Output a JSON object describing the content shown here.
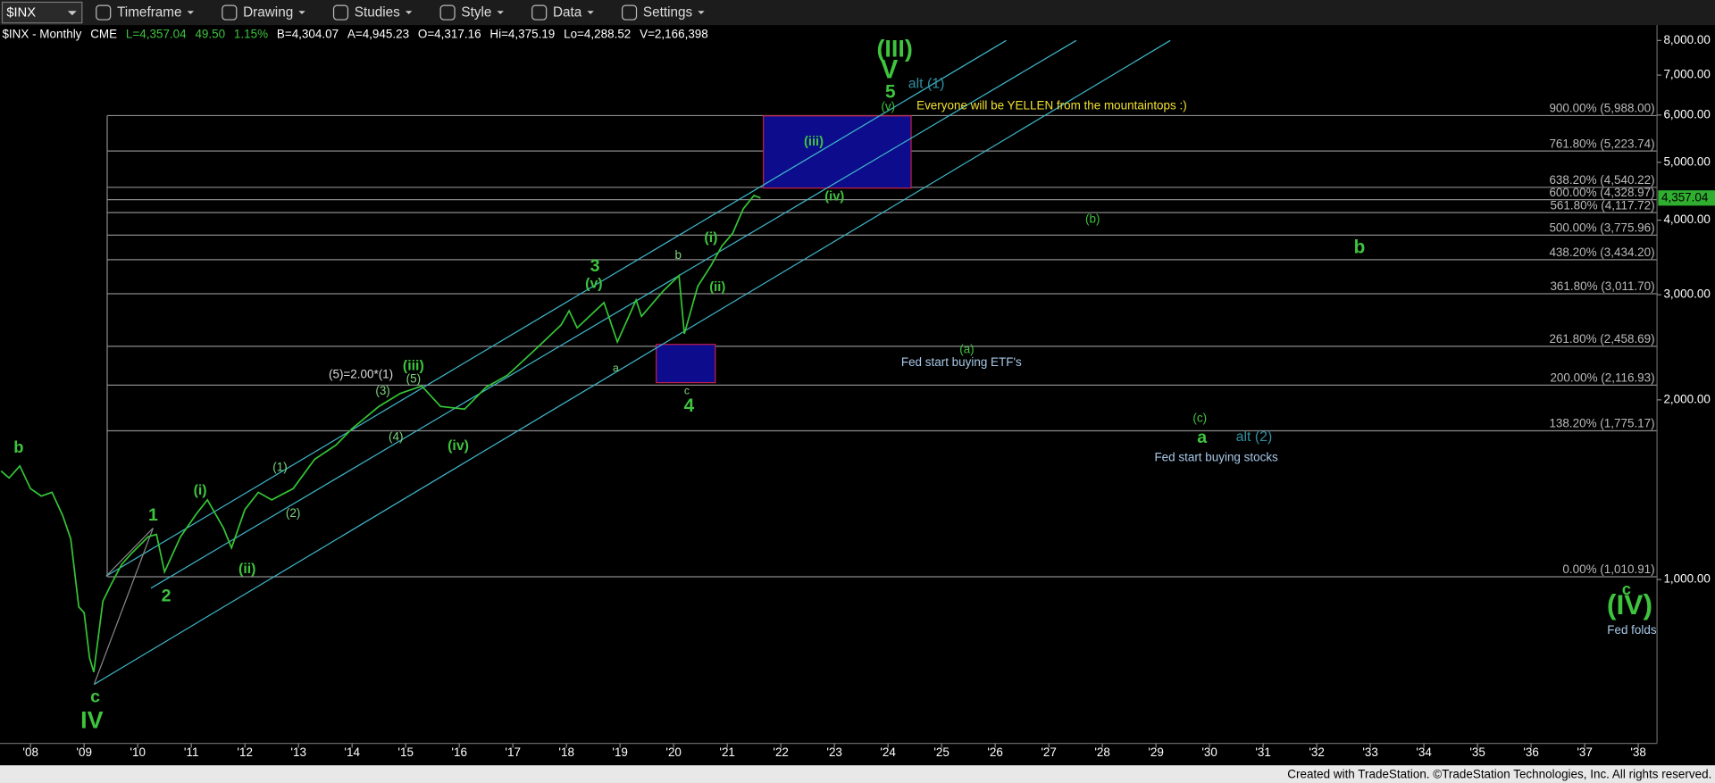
{
  "toolbar": {
    "symbol": "$INX",
    "menus": [
      "Timeframe",
      "Drawing",
      "Studies",
      "Style",
      "Data",
      "Settings"
    ]
  },
  "info": {
    "items": [
      "$INX - Monthly",
      "CME",
      "L=4,357.04",
      "49.50",
      "1.15%",
      "B=4,304.07",
      "A=4,945.23",
      "O=4,317.16",
      "Hi=4,375.19",
      "Lo=4,288.52",
      "V=2,166,398"
    ],
    "last_price_label": "4,357.04"
  },
  "chart_data": {
    "type": "line",
    "color": "#35c535",
    "log_scale": true,
    "x": [
      2007.45,
      2007.6,
      2007.8,
      2008.0,
      2008.2,
      2008.4,
      2008.6,
      2008.75,
      2008.9,
      2009.0,
      2009.1,
      2009.18,
      2009.35,
      2009.5,
      2009.7,
      2009.9,
      2010.2,
      2010.35,
      2010.5,
      2010.8,
      2011.1,
      2011.3,
      2011.6,
      2011.75,
      2012.0,
      2012.25,
      2012.5,
      2012.9,
      2013.3,
      2013.7,
      2014.0,
      2014.5,
      2014.9,
      2015.3,
      2015.65,
      2016.1,
      2016.5,
      2016.9,
      2017.4,
      2017.9,
      2018.05,
      2018.2,
      2018.7,
      2018.95,
      2019.3,
      2019.4,
      2019.8,
      2020.1,
      2020.2,
      2020.45,
      2020.7,
      2020.9,
      2021.1,
      2021.3,
      2021.5,
      2021.62
    ],
    "values": [
      1520,
      1480,
      1550,
      1420,
      1380,
      1400,
      1280,
      1170,
      900,
      880,
      740,
      700,
      920,
      980,
      1060,
      1110,
      1180,
      1190,
      1030,
      1180,
      1290,
      1360,
      1220,
      1130,
      1310,
      1400,
      1360,
      1420,
      1590,
      1680,
      1790,
      1950,
      2050,
      2110,
      1950,
      1930,
      2100,
      2200,
      2420,
      2670,
      2820,
      2640,
      2910,
      2500,
      2940,
      2760,
      3040,
      3230,
      2580,
      3100,
      3360,
      3620,
      3800,
      4180,
      4400,
      4357.04
    ],
    "xlim": [
      2007.43,
      2038.35
    ],
    "ylim": [
      536,
      8240
    ],
    "xticks": [
      {
        "value": 2008,
        "label": "'08"
      },
      {
        "value": 2009,
        "label": "'09"
      },
      {
        "value": 2010,
        "label": "'10"
      },
      {
        "value": 2011,
        "label": "'11"
      },
      {
        "value": 2012,
        "label": "'12"
      },
      {
        "value": 2013,
        "label": "'13"
      },
      {
        "value": 2014,
        "label": "'14"
      },
      {
        "value": 2015,
        "label": "'15"
      },
      {
        "value": 2016,
        "label": "'16"
      },
      {
        "value": 2017,
        "label": "'17"
      },
      {
        "value": 2018,
        "label": "'18"
      },
      {
        "value": 2019,
        "label": "'19"
      },
      {
        "value": 2020,
        "label": "'20"
      },
      {
        "value": 2021,
        "label": "'21"
      },
      {
        "value": 2022,
        "label": "'22"
      },
      {
        "value": 2023,
        "label": "'23"
      },
      {
        "value": 2024,
        "label": "'24"
      },
      {
        "value": 2025,
        "label": "'25"
      },
      {
        "value": 2026,
        "label": "'26"
      },
      {
        "value": 2027,
        "label": "'27"
      },
      {
        "value": 2028,
        "label": "'28"
      },
      {
        "value": 2029,
        "label": "'29"
      },
      {
        "value": 2030,
        "label": "'30"
      },
      {
        "value": 2031,
        "label": "'31"
      },
      {
        "value": 2032,
        "label": "'32"
      },
      {
        "value": 2033,
        "label": "'33"
      },
      {
        "value": 2034,
        "label": "'34"
      },
      {
        "value": 2035,
        "label": "'35"
      },
      {
        "value": 2036,
        "label": "'36"
      },
      {
        "value": 2037,
        "label": "'37"
      },
      {
        "value": 2038,
        "label": "'38"
      }
    ],
    "yticks": [
      {
        "value": 1000,
        "label": "1,000.00"
      },
      {
        "value": 2000,
        "label": "2,000.00"
      },
      {
        "value": 3000,
        "label": "3,000.00"
      },
      {
        "value": 4000,
        "label": "4,000.00"
      },
      {
        "value": 5000,
        "label": "5,000.00"
      },
      {
        "value": 6000,
        "label": "6,000.00"
      },
      {
        "value": 7000,
        "label": "7,000.00"
      },
      {
        "value": 8000,
        "label": "8,000.00"
      }
    ],
    "levels": [
      {
        "value": 1010.91,
        "label": "0.00% (1,010.91)"
      },
      {
        "value": 1775.17,
        "label": "138.20% (1,775.17)"
      },
      {
        "value": 2116.93,
        "label": "200.00% (2,116.93)"
      },
      {
        "value": 2458.69,
        "label": "261.80% (2,458.69)"
      },
      {
        "value": 3011.7,
        "label": "361.80% (3,011.70)"
      },
      {
        "value": 3434.2,
        "label": "438.20% (3,434.20)"
      },
      {
        "value": 3775.96,
        "label": "500.00% (3,775.96)"
      },
      {
        "value": 4117.72,
        "label": "561.80% (4,117.72)"
      },
      {
        "value": 4328.97,
        "label": "600.00% (4,328.97)"
      },
      {
        "value": 4540.22,
        "label": "638.20% (4,540.22)"
      },
      {
        "value": 5223.74,
        "label": "761.80% (5,223.74)"
      },
      {
        "value": 5988.0,
        "label": "900.00% (5,988.00)"
      }
    ],
    "annotations": [
      "b",
      "c",
      "IV",
      "1",
      "2",
      "(i)",
      "(ii)",
      "(1)",
      "(2)",
      "(3)",
      "(4)",
      "(5)",
      "(5)=2.00*(1)",
      "(iii)",
      "(iv)",
      "3",
      "(v)",
      "a",
      "b",
      "(i)",
      "(ii)",
      "c",
      "4",
      "(iii)",
      "(iv)",
      "(v)",
      "5",
      "V",
      "(III)",
      "alt (1)",
      "Everyone will be YELLEN from the mountaintops :)",
      "(a)",
      "Fed start buying ETF's",
      "(b)",
      "(c)",
      "a",
      "alt (2)",
      "Fed start buying stocks",
      "b",
      "c",
      "(IV)",
      "Fed folds"
    ]
  },
  "footer": {
    "text": "Created with TradeStation. ©TradeStation Technologies, Inc. All rights reserved."
  }
}
